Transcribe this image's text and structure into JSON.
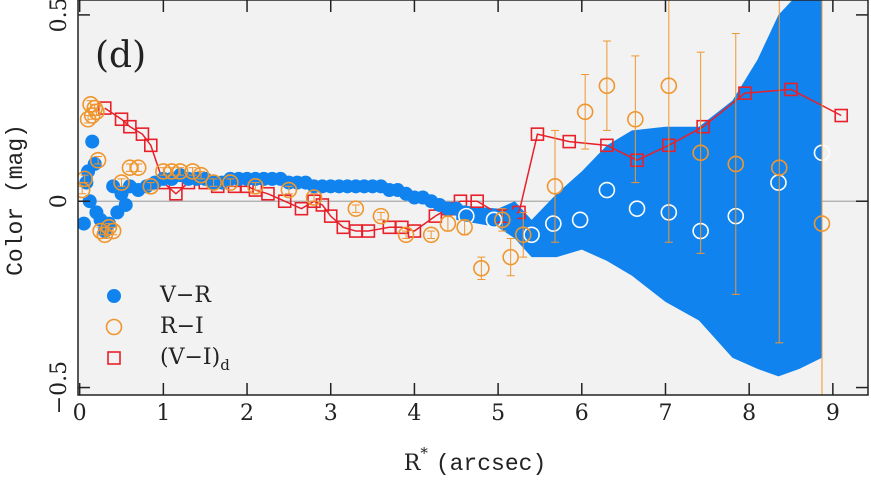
{
  "chart_data": {
    "type": "scatter",
    "panel_label": "(d)",
    "xlabel": {
      "text": "R",
      "superscript": "*",
      "unit": "(arcsec)"
    },
    "ylabel": "Color (mag)",
    "xlim": [
      -0.02,
      9.42
    ],
    "ylim": [
      -0.52,
      0.54
    ],
    "xticks": [
      0,
      1,
      2,
      3,
      4,
      5,
      6,
      7,
      8,
      9
    ],
    "yticks": [
      {
        "value": -0.5,
        "label": "−0.5"
      },
      0,
      0.5
    ],
    "zero_line": true,
    "background": "#f2f2f2",
    "legend": "lower left",
    "band": {
      "color": "#1183ef",
      "x": [
        4.5,
        5.0,
        5.2,
        5.4,
        5.7,
        6.0,
        6.3,
        6.6,
        7.0,
        7.4,
        7.8,
        8.1,
        8.35,
        8.6,
        8.87
      ],
      "upper": [
        -0.01,
        -0.02,
        0.0,
        -0.05,
        0.02,
        0.08,
        0.15,
        0.19,
        0.2,
        0.2,
        0.27,
        0.38,
        0.5,
        0.56,
        0.56
      ],
      "lower": [
        -0.05,
        -0.07,
        -0.1,
        -0.15,
        -0.15,
        -0.13,
        -0.16,
        -0.2,
        -0.27,
        -0.32,
        -0.42,
        -0.45,
        -0.47,
        -0.45,
        -0.42
      ]
    },
    "series": [
      {
        "name": "V−R",
        "color": "#1183ef",
        "marker": "circle",
        "filled": true,
        "x": [
          0.05,
          0.08,
          0.1,
          0.12,
          0.15,
          0.18,
          0.2,
          0.25,
          0.3,
          0.35,
          0.4,
          0.45,
          0.5,
          0.55,
          0.6,
          0.7,
          0.8,
          0.9,
          1.0,
          1.1,
          1.2,
          1.3,
          1.4,
          1.5,
          1.6,
          1.7,
          1.8,
          1.9,
          2.0,
          2.1,
          2.2,
          2.3,
          2.4,
          2.5,
          2.6,
          2.7,
          2.8,
          2.9,
          3.0,
          3.1,
          3.2,
          3.3,
          3.4,
          3.5,
          3.6,
          3.7,
          3.8,
          3.9,
          4.0,
          4.1,
          4.2,
          4.3,
          4.4,
          4.5,
          4.6,
          4.8,
          4.95,
          5.15
        ],
        "values": [
          -0.06,
          0.05,
          0.08,
          0.0,
          0.16,
          0.1,
          -0.03,
          -0.05,
          -0.08,
          -0.06,
          0.04,
          -0.03,
          0.02,
          -0.01,
          0.04,
          0.03,
          0.04,
          0.05,
          0.06,
          0.06,
          0.07,
          0.06,
          0.06,
          0.06,
          0.05,
          0.05,
          0.06,
          0.06,
          0.06,
          0.06,
          0.06,
          0.06,
          0.06,
          0.05,
          0.05,
          0.05,
          0.04,
          0.04,
          0.04,
          0.04,
          0.04,
          0.04,
          0.04,
          0.04,
          0.04,
          0.03,
          0.03,
          0.02,
          0.01,
          0.01,
          0.0,
          -0.01,
          -0.02,
          -0.02,
          -0.03,
          -0.04,
          -0.04,
          -0.04
        ]
      },
      {
        "color": "#ffffff",
        "marker": "circle",
        "filled": false,
        "x": [
          4.62,
          4.95,
          5.4,
          5.66,
          5.98,
          6.3,
          6.66,
          7.04,
          7.42,
          7.84,
          8.35,
          8.87
        ],
        "values": [
          -0.04,
          -0.05,
          -0.09,
          -0.06,
          -0.05,
          0.03,
          -0.02,
          -0.03,
          -0.08,
          -0.04,
          0.05,
          0.13
        ]
      },
      {
        "name": "R−I",
        "color": "#f0962e",
        "marker": "circle",
        "filled": false,
        "x": [
          0.03,
          0.06,
          0.1,
          0.13,
          0.15,
          0.18,
          0.2,
          0.22,
          0.25,
          0.3,
          0.35,
          0.4,
          0.5,
          0.6,
          0.7,
          0.85,
          1.0,
          1.1,
          1.2,
          1.35,
          1.45,
          1.6,
          1.8,
          2.1,
          2.5,
          2.8,
          3.3,
          3.6,
          3.9,
          4.2,
          4.4,
          4.6,
          4.8,
          5.05,
          5.15,
          5.3,
          5.68,
          6.04,
          6.3,
          6.64,
          7.04,
          7.42,
          7.84,
          8.36,
          8.87
        ],
        "values": [
          0.03,
          0.06,
          0.22,
          0.26,
          0.23,
          0.25,
          0.24,
          0.11,
          -0.08,
          -0.09,
          -0.07,
          -0.08,
          0.05,
          0.09,
          0.09,
          0.04,
          0.08,
          0.08,
          0.08,
          0.08,
          0.07,
          0.05,
          0.05,
          0.04,
          0.03,
          0.01,
          -0.02,
          -0.04,
          -0.09,
          -0.09,
          -0.06,
          -0.07,
          -0.18,
          -0.05,
          -0.15,
          -0.09,
          0.04,
          0.24,
          0.31,
          0.22,
          0.31,
          0.13,
          0.1,
          0.09,
          -0.06
        ],
        "errors": [
          0.01,
          0.01,
          0.01,
          0.01,
          0.01,
          0.01,
          0.01,
          0.01,
          0.01,
          0.01,
          0.01,
          0.01,
          0.01,
          0.01,
          0.01,
          0.01,
          0.01,
          0.01,
          0.01,
          0.01,
          0.01,
          0.01,
          0.01,
          0.01,
          0.01,
          0.01,
          0.01,
          0.01,
          0.01,
          0.01,
          0.02,
          0.02,
          0.03,
          0.03,
          0.05,
          0.06,
          0.15,
          0.1,
          0.12,
          0.17,
          0.42,
          0.27,
          0.35,
          0.47,
          0.6
        ]
      },
      {
        "name": "(V−I)",
        "name_subscript": "d",
        "color": "#e8202a",
        "marker": "square",
        "filled": false,
        "line": true,
        "x": [
          0.3,
          0.5,
          0.6,
          0.75,
          0.85,
          1.0,
          1.15,
          1.3,
          1.5,
          1.65,
          1.85,
          2.0,
          2.1,
          2.25,
          2.45,
          2.65,
          2.8,
          2.9,
          3.0,
          3.15,
          3.3,
          3.45,
          3.7,
          3.85,
          4.0,
          4.25,
          4.4,
          4.55,
          4.75,
          5.05,
          5.25,
          5.47,
          5.85,
          6.3,
          6.66,
          7.04,
          7.45,
          7.95,
          8.5,
          9.1
        ],
        "values": [
          0.25,
          0.22,
          0.2,
          0.18,
          0.15,
          0.05,
          0.02,
          0.05,
          0.05,
          0.04,
          0.04,
          0.04,
          0.03,
          0.02,
          0.0,
          -0.02,
          0.0,
          -0.01,
          -0.04,
          -0.07,
          -0.08,
          -0.08,
          -0.07,
          -0.07,
          -0.08,
          -0.04,
          -0.02,
          0.0,
          0.0,
          -0.04,
          -0.03,
          0.18,
          0.16,
          0.15,
          0.11,
          0.15,
          0.2,
          0.29,
          0.3,
          0.23
        ]
      }
    ]
  }
}
